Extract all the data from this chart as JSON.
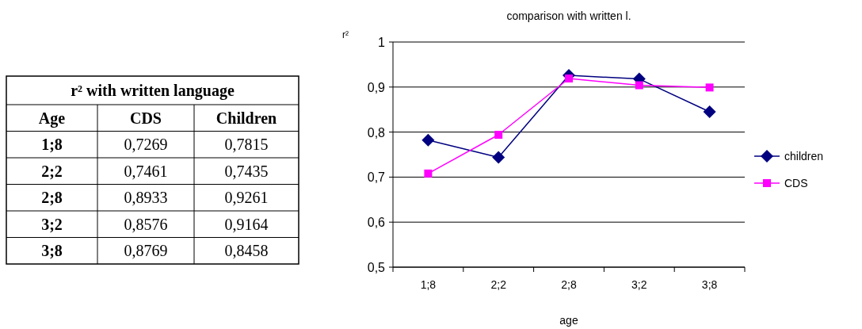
{
  "chart_data": [
    {
      "type": "other",
      "title": "r² with written language",
      "ylabel": "Age",
      "categories": [
        "CDS",
        "Children"
      ],
      "y_categories": [
        "1;8",
        "2;2",
        "2;8",
        "3;2",
        "3;8"
      ],
      "annotations": [
        "0,7269",
        "0,7815",
        "0,7461",
        "0,7435",
        "0,8933",
        "0,9261",
        "0,8576",
        "0,9164",
        "0,8769",
        "0,8458"
      ]
    },
    {
      "type": "line",
      "title": "comparison with written l.",
      "xlabel": "age",
      "ylabel": "r²",
      "categories": [
        "1;8",
        "2;2",
        "2;8",
        "3;2",
        "3;8"
      ],
      "ylim": [
        0.5,
        1
      ],
      "yticks": [
        {
          "value": 0.5,
          "label": "0,5"
        },
        {
          "value": 0.6,
          "label": "0,6"
        },
        {
          "value": 0.7,
          "label": "0,7"
        },
        {
          "value": 0.8,
          "label": "0,8"
        },
        {
          "value": 0.9,
          "label": "0,9"
        },
        {
          "value": 1,
          "label": "1"
        }
      ],
      "grid": "y",
      "legend": "right",
      "series": [
        {
          "name": "children",
          "color": "#000080",
          "marker": "diamond",
          "values": [
            0.782,
            0.744,
            0.926,
            0.918,
            0.845
          ]
        },
        {
          "name": "CDS",
          "color": "#ff00ff",
          "marker": "square",
          "values": [
            0.708,
            0.794,
            0.919,
            0.904,
            0.899
          ]
        }
      ]
    }
  ]
}
